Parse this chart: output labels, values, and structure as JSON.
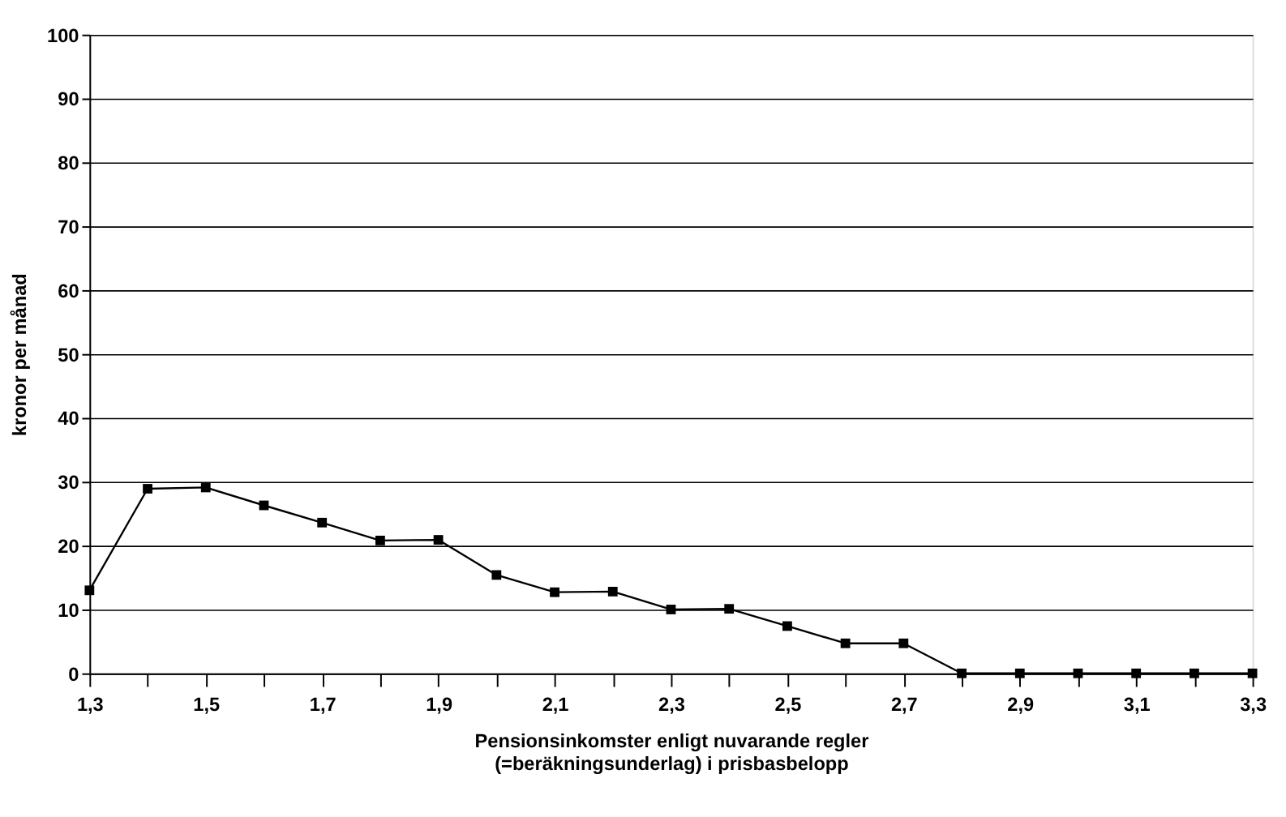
{
  "chart_data": {
    "type": "line",
    "xlabel": "Pensionsinkomster enligt nuvarande regler\n(=beräkningsunderlag) i prisbasbelopp",
    "ylabel": "kronor per månad",
    "x": [
      1.3,
      1.4,
      1.5,
      1.6,
      1.7,
      1.8,
      1.9,
      2.0,
      2.1,
      2.2,
      2.3,
      2.4,
      2.5,
      2.6,
      2.7,
      2.8,
      2.9,
      3.0,
      3.1,
      3.2,
      3.3
    ],
    "series": [
      {
        "color": "#000000",
        "values": [
          13,
          28.9,
          29.1,
          26.3,
          23.6,
          20.8,
          20.9,
          15.4,
          12.7,
          12.8,
          10,
          10.1,
          7.4,
          4.7,
          4.7,
          0,
          0,
          0,
          0,
          0,
          0
        ]
      }
    ],
    "xlim": [
      1.3,
      3.3
    ],
    "xticks": [
      {
        "value": 1.3,
        "label": "1,3"
      },
      {
        "value": 1.4,
        "label": null
      },
      {
        "value": 1.5,
        "label": "1,5"
      },
      {
        "value": 1.6,
        "label": null
      },
      {
        "value": 1.7,
        "label": "1,7"
      },
      {
        "value": 1.8,
        "label": null
      },
      {
        "value": 1.9,
        "label": "1,9"
      },
      {
        "value": 2.0,
        "label": null
      },
      {
        "value": 2.1,
        "label": "2,1"
      },
      {
        "value": 2.2,
        "label": null
      },
      {
        "value": 2.3,
        "label": "2,3"
      },
      {
        "value": 2.4,
        "label": null
      },
      {
        "value": 2.5,
        "label": "2,5"
      },
      {
        "value": 2.6,
        "label": null
      },
      {
        "value": 2.7,
        "label": "2,7"
      },
      {
        "value": 2.8,
        "label": null
      },
      {
        "value": 2.9,
        "label": "2,9"
      },
      {
        "value": 3.0,
        "label": null
      },
      {
        "value": 3.1,
        "label": "3,1"
      },
      {
        "value": 3.2,
        "label": null
      },
      {
        "value": 3.3,
        "label": "3,3"
      }
    ],
    "ylim": [
      0,
      100
    ],
    "yticks": [
      0,
      10,
      20,
      30,
      40,
      50,
      60,
      70,
      80,
      90,
      100
    ],
    "grid": "y",
    "marker": "square",
    "line_style": "solid"
  }
}
